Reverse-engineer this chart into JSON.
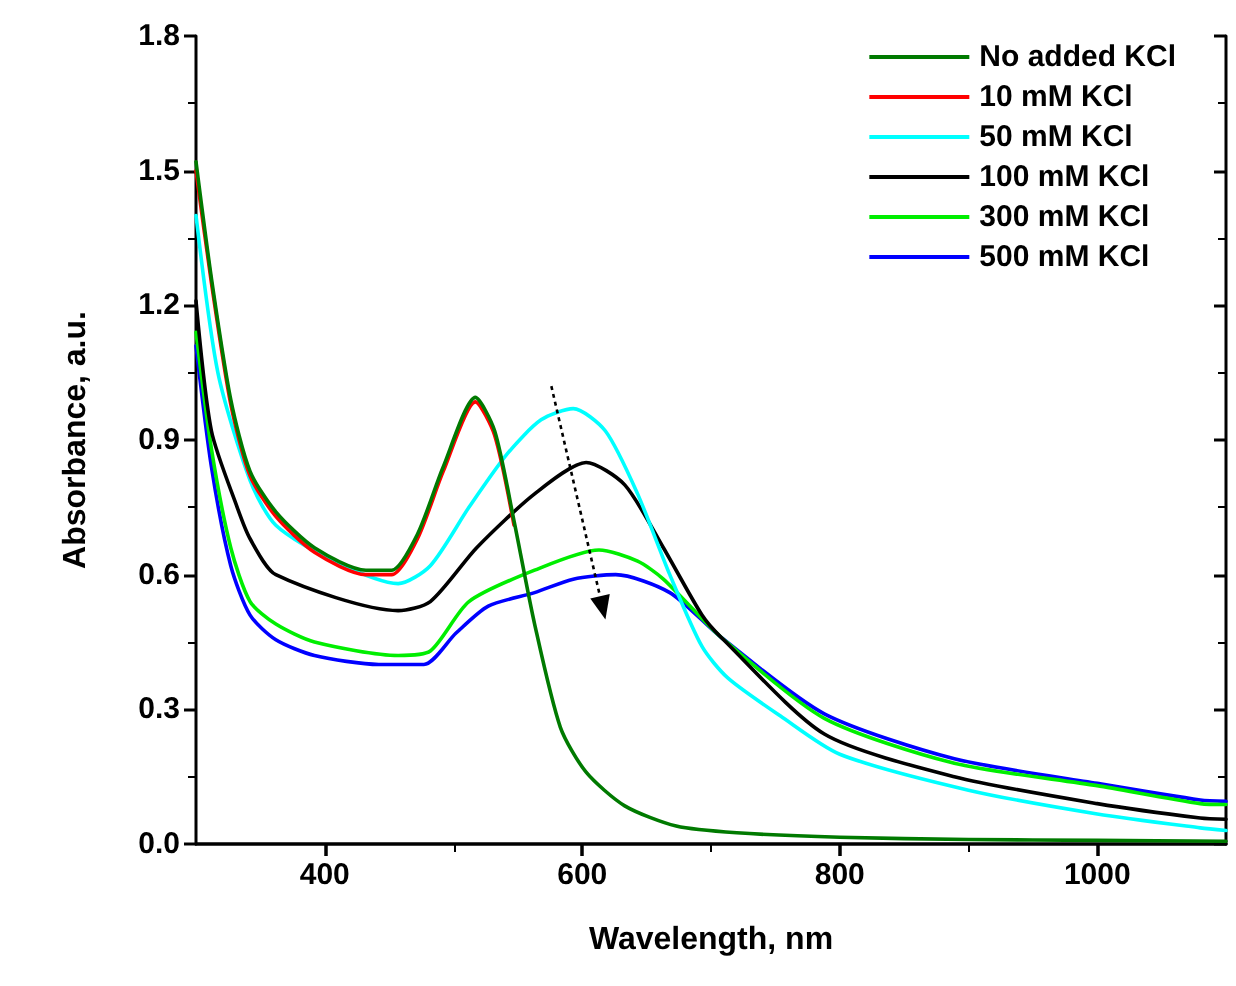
{
  "chart_data": {
    "type": "line",
    "xlabel": "Wavelength, nm",
    "ylabel": "Absorbance, a.u.",
    "xlim": [
      300,
      1100
    ],
    "xticks": [
      400,
      600,
      800,
      1000
    ],
    "ylim": [
      0,
      1.8
    ],
    "yticks": [
      {
        "value": 0,
        "label": "0.0"
      },
      0.3,
      0.6,
      0.9,
      1.2,
      1.5,
      1.8
    ],
    "legend": "top right",
    "grid": false,
    "marker": "none",
    "line_style": "solid",
    "series": [
      {
        "name": "No added KCl",
        "color": "#007a00",
        "x": [
          300,
          312,
          327,
          342,
          362,
          392,
          432,
          452,
          472,
          492,
          517,
          532,
          547,
          563,
          583,
          603,
          633,
          673,
          720,
          800,
          900,
          1000,
          1100
        ],
        "values": [
          1.52,
          1.26,
          0.99,
          0.83,
          0.74,
          0.66,
          0.61,
          0.61,
          0.69,
          0.84,
          0.995,
          0.92,
          0.72,
          0.49,
          0.26,
          0.16,
          0.085,
          0.04,
          0.025,
          0.015,
          0.01,
          0.008,
          0.006
        ]
      },
      {
        "name": "10 mM KCl",
        "color": "#ff0000",
        "x": [
          300,
          312,
          327,
          342,
          362,
          392,
          432,
          452,
          472,
          492,
          517,
          532,
          547
        ],
        "values": [
          1.5,
          1.25,
          0.98,
          0.82,
          0.73,
          0.65,
          0.6,
          0.6,
          0.68,
          0.83,
          0.985,
          0.91,
          0.71
        ]
      },
      {
        "name": "50 mM KCl",
        "color": "#00ffff",
        "x": [
          300,
          317,
          342,
          362,
          407,
          457,
          482,
          512,
          542,
          568,
          593,
          618,
          643,
          668,
          693,
          713,
          754,
          800,
          900,
          1000,
          1080,
          1100
        ],
        "values": [
          1.4,
          1.05,
          0.81,
          0.71,
          0.63,
          0.58,
          0.62,
          0.75,
          0.87,
          0.945,
          0.97,
          0.92,
          0.78,
          0.6,
          0.44,
          0.37,
          0.285,
          0.2,
          0.12,
          0.067,
          0.036,
          0.03
        ]
      },
      {
        "name": "100 mM KCl",
        "color": "#000000",
        "x": [
          300,
          312,
          332,
          342,
          362,
          457,
          482,
          518,
          563,
          603,
          633,
          663,
          693,
          708,
          788,
          889,
          1000,
          1080,
          1100
        ],
        "values": [
          1.21,
          0.92,
          0.75,
          0.68,
          0.6,
          0.52,
          0.54,
          0.66,
          0.78,
          0.85,
          0.8,
          0.66,
          0.51,
          0.46,
          0.245,
          0.15,
          0.09,
          0.058,
          0.055
        ]
      },
      {
        "name": "300 mM KCl",
        "color": "#00ee00",
        "x": [
          300,
          312,
          327,
          342,
          362,
          392,
          457,
          482,
          512,
          563,
          613,
          643,
          663,
          708,
          788,
          889,
          1000,
          1080,
          1100
        ],
        "values": [
          1.14,
          0.88,
          0.66,
          0.54,
          0.49,
          0.45,
          0.42,
          0.43,
          0.54,
          0.61,
          0.655,
          0.63,
          0.59,
          0.46,
          0.28,
          0.18,
          0.13,
          0.09,
          0.088
        ]
      },
      {
        "name": "500 mM KCl",
        "color": "#0000ff",
        "x": [
          300,
          312,
          327,
          342,
          362,
          392,
          442,
          477,
          502,
          527,
          563,
          593,
          626,
          668,
          708,
          788,
          889,
          1000,
          1080,
          1100
        ],
        "values": [
          1.11,
          0.84,
          0.62,
          0.51,
          0.455,
          0.42,
          0.4,
          0.4,
          0.47,
          0.53,
          0.56,
          0.59,
          0.6,
          0.56,
          0.46,
          0.29,
          0.19,
          0.135,
          0.098,
          0.095
        ]
      }
    ]
  }
}
